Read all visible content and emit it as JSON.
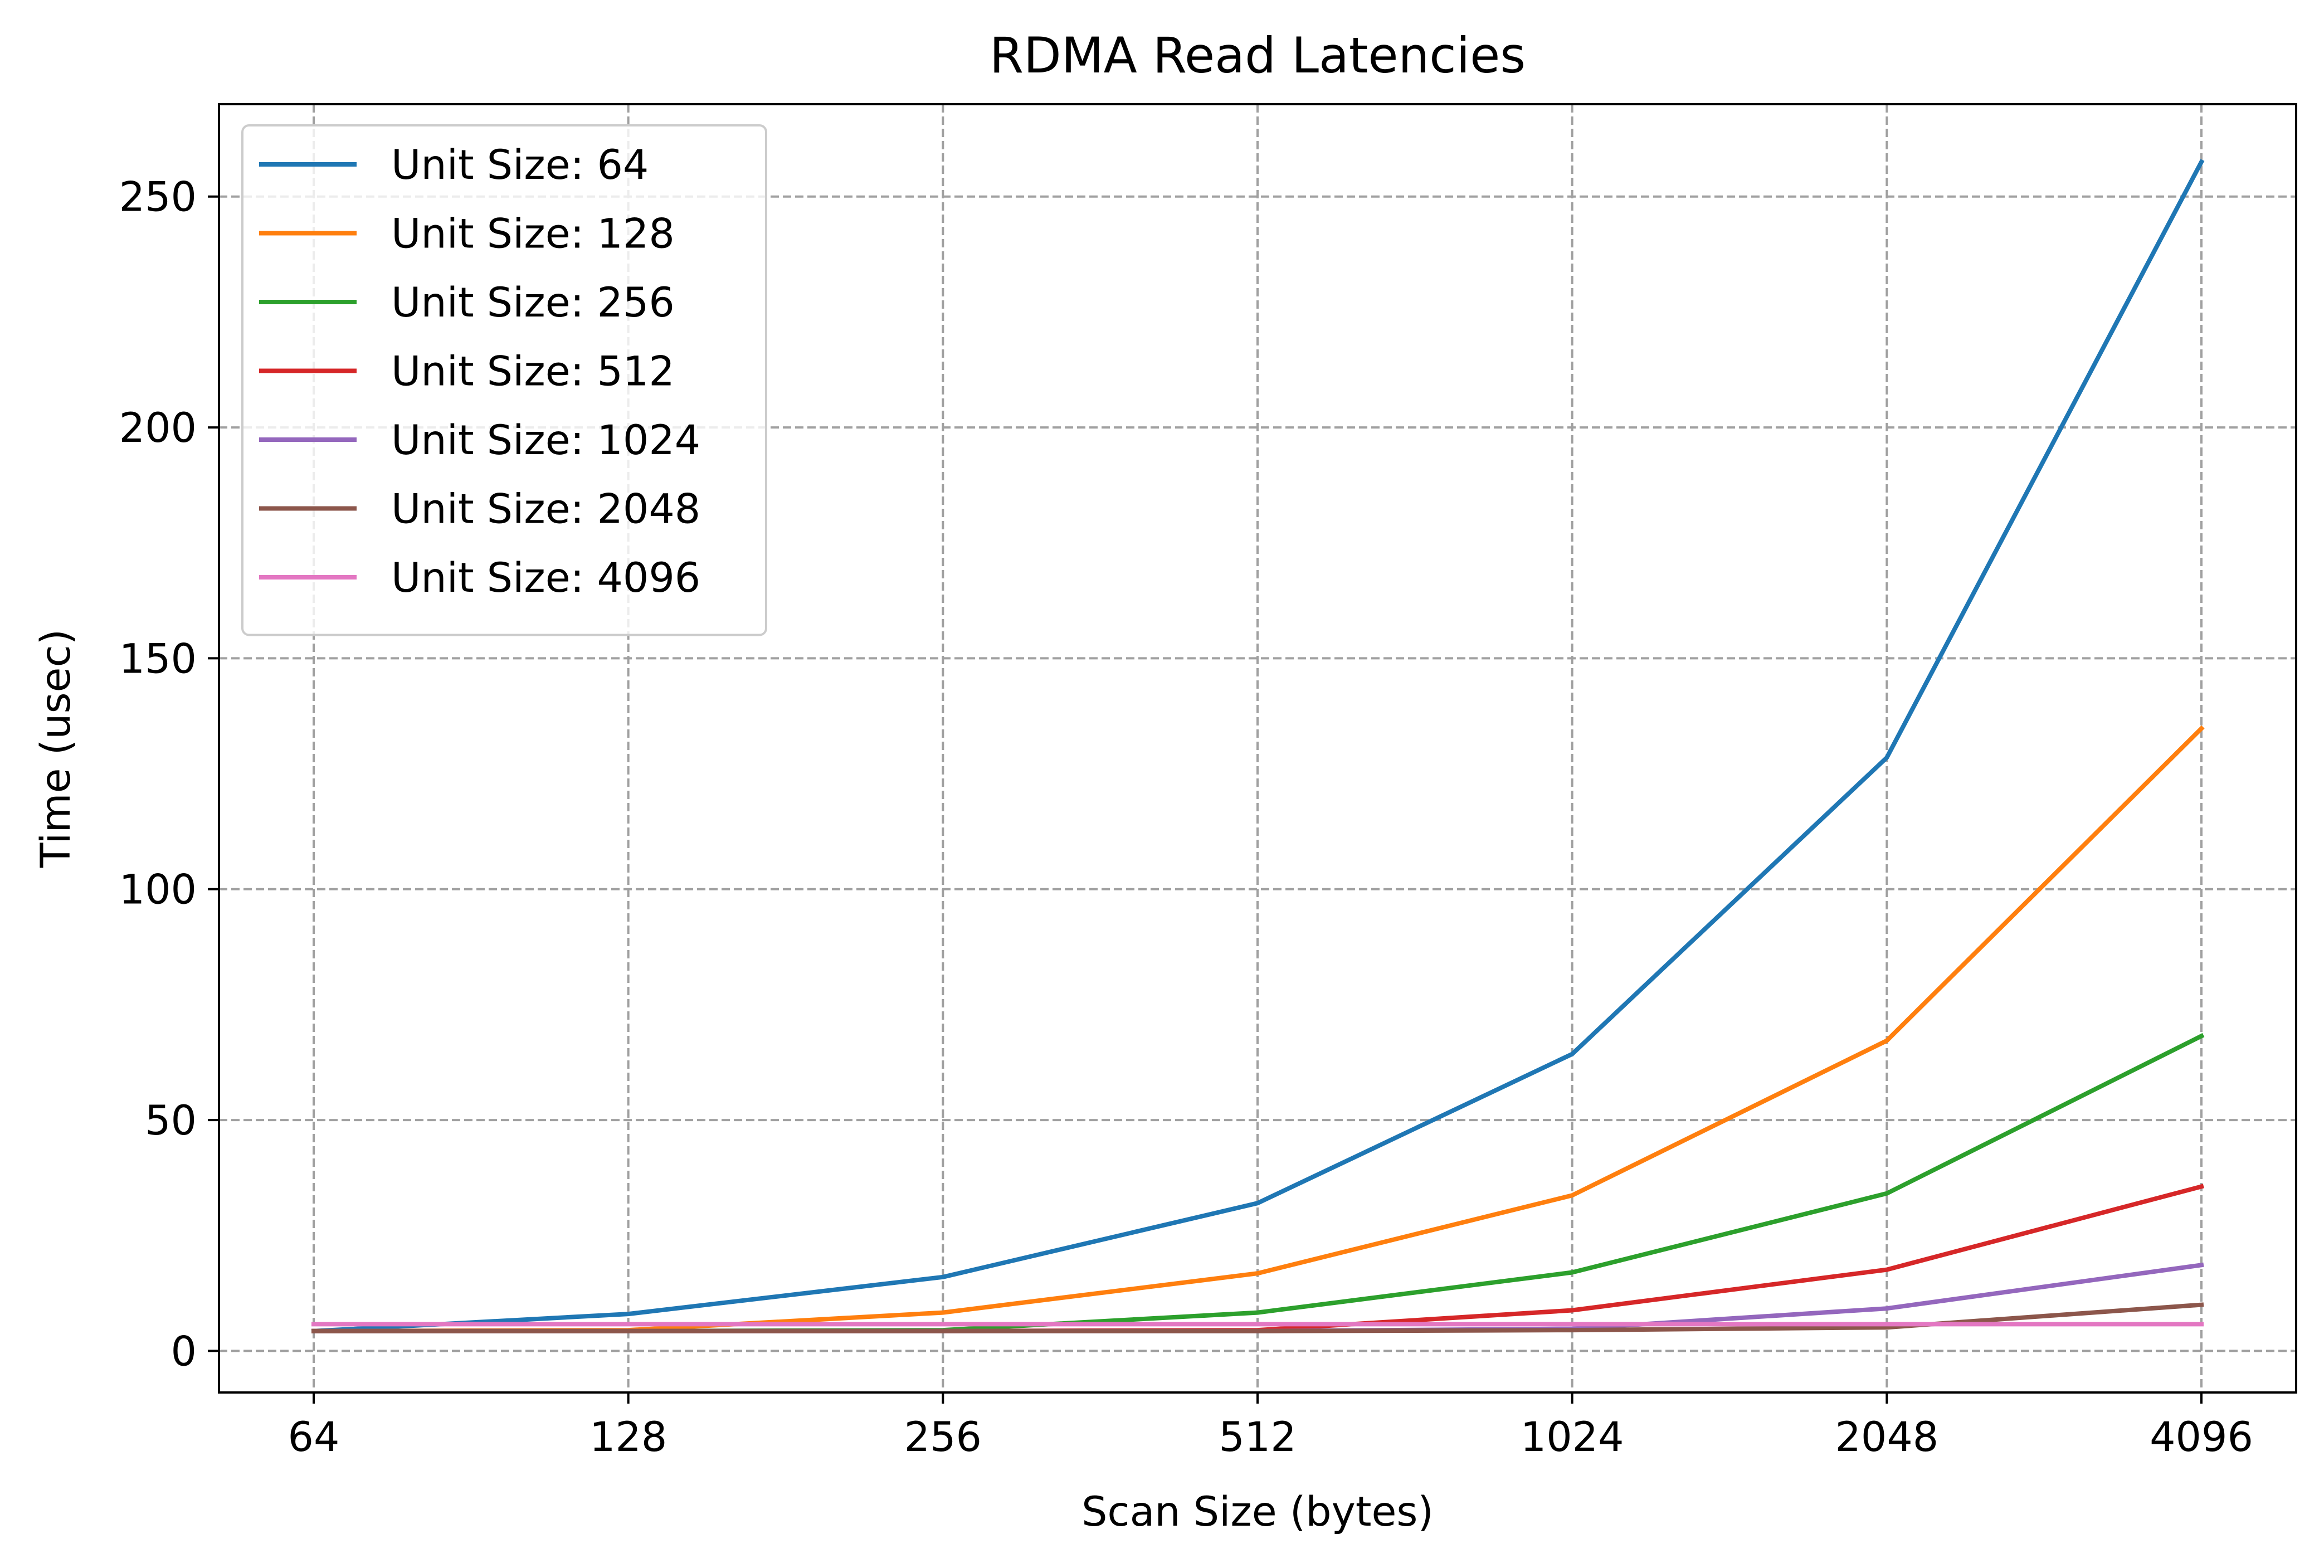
{
  "chart_data": {
    "type": "line",
    "title": "RDMA Read Latencies",
    "xlabel": "Scan Size (bytes)",
    "ylabel": "Time (usec)",
    "x_scale": "log2",
    "categories": [
      "64",
      "128",
      "256",
      "512",
      "1024",
      "2048",
      "4096"
    ],
    "x": [
      64,
      128,
      256,
      512,
      1024,
      2048,
      4096
    ],
    "ylim": [
      -9,
      270
    ],
    "yticks": [
      0,
      50,
      100,
      150,
      200,
      250
    ],
    "ytick_labels": [
      "0",
      "50",
      "100",
      "150",
      "200",
      "250"
    ],
    "grid": true,
    "legend_position": "top-left",
    "series": [
      {
        "name": "Unit Size: 64",
        "color": "#1f77b4",
        "values": [
          4.3,
          8,
          16,
          32,
          64.3,
          128.5,
          257.5
        ]
      },
      {
        "name": "Unit Size: 128",
        "color": "#ff7f0e",
        "values": [
          4.3,
          4.5,
          8.3,
          16.8,
          33.7,
          67.2,
          134.8
        ]
      },
      {
        "name": "Unit Size: 256",
        "color": "#2ca02c",
        "values": [
          4.3,
          4.3,
          4.5,
          8.3,
          17,
          34.1,
          68.2
        ]
      },
      {
        "name": "Unit Size: 512",
        "color": "#d62728",
        "values": [
          4.3,
          4.3,
          4.3,
          4.5,
          8.8,
          17.6,
          35.6
        ]
      },
      {
        "name": "Unit Size: 1024",
        "color": "#9467bd",
        "values": [
          4.3,
          4.3,
          4.3,
          4.3,
          4.8,
          9.2,
          18.6
        ]
      },
      {
        "name": "Unit Size: 2048",
        "color": "#8c564b",
        "values": [
          4.3,
          4.3,
          4.3,
          4.3,
          4.5,
          5.1,
          10
        ]
      },
      {
        "name": "Unit Size: 4096",
        "color": "#e377c2",
        "values": [
          5.8,
          5.8,
          5.8,
          5.8,
          5.8,
          5.8,
          5.8
        ]
      }
    ]
  }
}
